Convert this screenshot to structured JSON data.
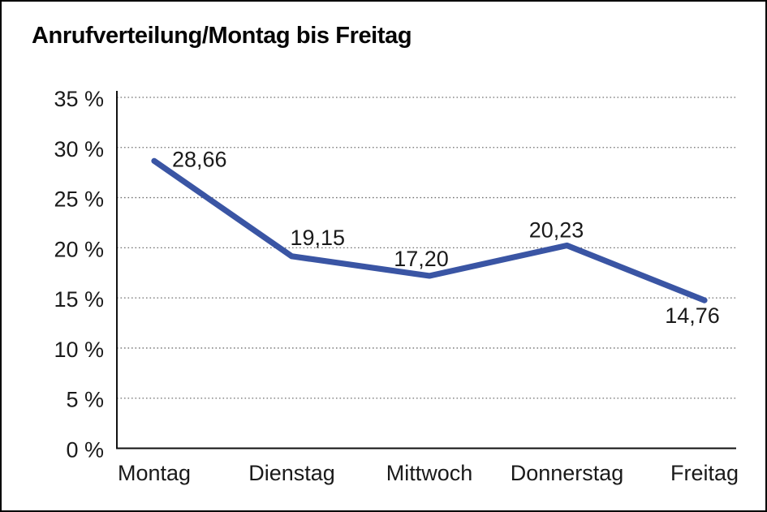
{
  "window": {
    "background": "#ffffff",
    "frame_color": "#000000"
  },
  "chart_data": {
    "type": "line",
    "title": "Anrufverteilung/Montag bis Freitag",
    "categories": [
      "Montag",
      "Dienstag",
      "Mittwoch",
      "Donnerstag",
      "Freitag"
    ],
    "series": [
      {
        "name": "Anrufverteilung",
        "values": [
          28.66,
          19.15,
          17.2,
          20.23,
          14.76
        ]
      }
    ],
    "value_labels": [
      "28,66",
      "19,15",
      "17,20",
      "20,23",
      "14,76"
    ],
    "ytick_labels": [
      "0 %",
      "5 %",
      "10 %",
      "15 %",
      "20 %",
      "25 %",
      "30 %",
      "35 %"
    ],
    "ylim": [
      0,
      35
    ],
    "ytick_step": 5,
    "grid": "horizontal-dotted",
    "legend": "none",
    "line_color": "#3A55A4",
    "axis_color": "#111111",
    "gridline_color": "#707070",
    "label_color": "#1a1a1a"
  }
}
